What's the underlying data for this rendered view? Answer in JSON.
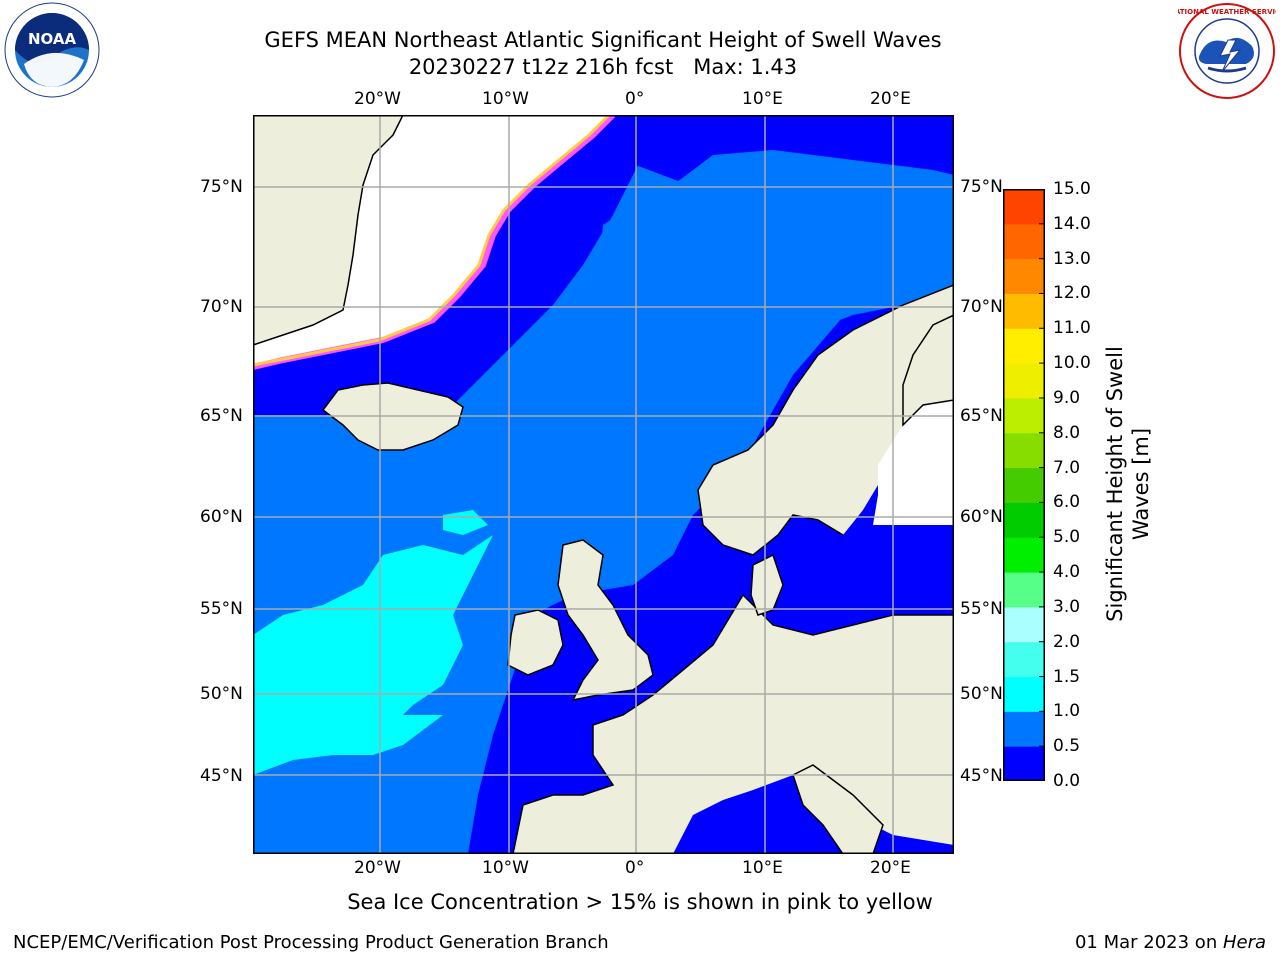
{
  "title": {
    "line1": "GEFS MEAN Northeast Atlantic Significant Height of Swell Waves",
    "line2": "20230227 t12z 216h fcst   Max: 1.43"
  },
  "logos": {
    "left": "NOAA",
    "right": "NATIONAL WEATHER SERVICE"
  },
  "map": {
    "lon_labels_top": [
      "20°W",
      "10°W",
      "0°",
      "10°E",
      "20°E"
    ],
    "lon_labels_bottom": [
      "20°W",
      "10°W",
      "0°",
      "10°E",
      "20°E"
    ],
    "lat_labels_left": [
      "75°N",
      "70°N",
      "65°N",
      "60°N",
      "55°N",
      "50°N",
      "45°N"
    ],
    "lat_labels_right": [
      "75°N",
      "70°N",
      "65°N",
      "60°N",
      "55°N",
      "50°N",
      "45°N"
    ],
    "colors": {
      "land": "#eeeedd",
      "sea_0_05": "#0000ff",
      "sea_05_1": "#0077ff",
      "sea_1_15": "#00ffff",
      "ice_edge": "#ff55ff",
      "ice_yellow": "#ffcc44",
      "grid": "#aaaaaa"
    }
  },
  "colorbar": {
    "title_line1": "Significant Height of Swell",
    "title_line2": "Waves [m]",
    "ticks": [
      "15.0",
      "14.0",
      "13.0",
      "12.0",
      "11.0",
      "10.0",
      "9.0",
      "8.0",
      "7.0",
      "6.0",
      "5.0",
      "4.0",
      "3.0",
      "2.0",
      "1.5",
      "1.0",
      "0.5",
      "0.0"
    ],
    "colors": [
      "#0000ff",
      "#0077ff",
      "#00ffff",
      "#44ffee",
      "#aaffff",
      "#55ff88",
      "#00ee00",
      "#00cc00",
      "#44cc00",
      "#88dd00",
      "#bbee00",
      "#eeee00",
      "#ffee00",
      "#ffbb00",
      "#ff8800",
      "#ff6600",
      "#ff4400",
      "#ff2200",
      "#ff0000"
    ]
  },
  "note": "Sea Ice Concentration > 15% is shown in pink to yellow",
  "footer": {
    "left": "NCEP/EMC/Verification Post Processing Product Generation Branch",
    "right_date": "01 Mar 2023 on ",
    "right_machine": "Hera"
  }
}
